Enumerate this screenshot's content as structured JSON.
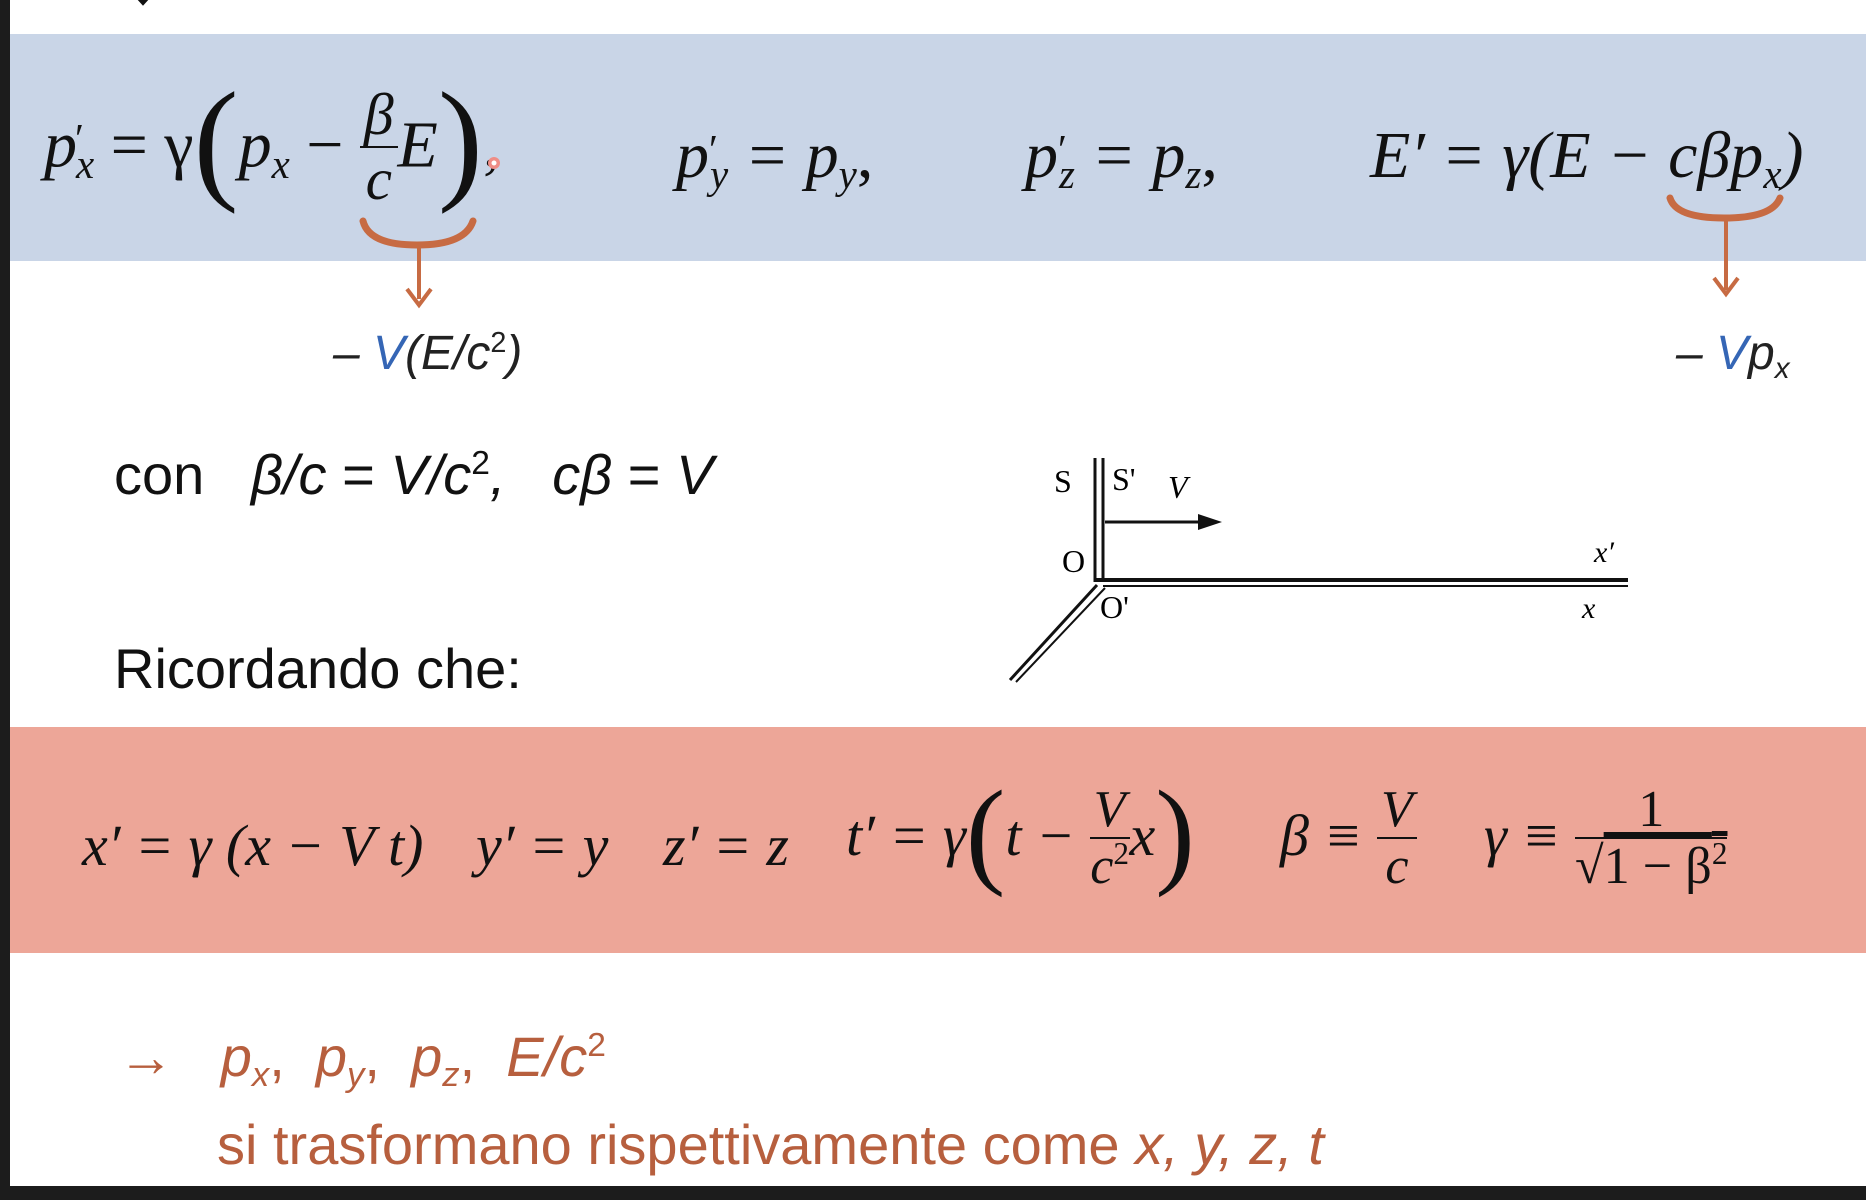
{
  "lorentz_momentum": {
    "px_lhs": "p",
    "px_lhs_sub": "x",
    "px_eq": "= γ",
    "px_inner": "p",
    "px_inner_sub": "x",
    "minus": "−",
    "frac_beta": "β",
    "frac_c": "c",
    "E": "E",
    "comma": ",",
    "py_lhs": "p",
    "py_lhs_sub": "y",
    "py_rhs": "= p",
    "py_rhs_sub": "y",
    "py_tail": ",",
    "pz_lhs": "p",
    "pz_lhs_sub": "z",
    "pz_rhs": "= p",
    "pz_rhs_sub": "z",
    "pz_tail": ",",
    "E_lhs": "E′",
    "E_rhs_a": "= γ(E − cβp",
    "E_rhs_sub": "x",
    "E_rhs_b": ")"
  },
  "annotations": {
    "left_dash": "– ",
    "left_V": "V",
    "left_rest": "(E/c",
    "left_sup": "2",
    "left_close": ")",
    "right_dash": "– ",
    "right_V": "V",
    "right_p": "p",
    "right_sub": "x"
  },
  "con_line": {
    "con": "con",
    "a": "β/c",
    "b": " = ",
    "c": "V/c",
    "c_sup": "2",
    "d": ",",
    "e": "cβ",
    "f": " = ",
    "g": "V"
  },
  "ricordando": "Ricordando che:",
  "diagram": {
    "S": "S",
    "S_prime": "S'",
    "V": "V",
    "O": "O",
    "O_prime": "O'",
    "x_prime": "x′",
    "x": "x"
  },
  "lorentz_coords": {
    "x_eq": "x′ = γ (x − V t)",
    "y_eq": "y′ = y",
    "z_eq": "z′ = z",
    "t_lhs": "t′ = γ",
    "t_t": "t −",
    "t_frac_num": "V",
    "t_frac_den": "c",
    "t_frac_den_sup": "2",
    "t_x": "x",
    "beta_lhs": "β ≡",
    "beta_num": "V",
    "beta_den": "c",
    "gamma_lhs": "γ ≡",
    "gamma_num": "1",
    "gamma_den": "1 − β",
    "gamma_den_sup": "2"
  },
  "conclusion": {
    "arrow": "→",
    "px": "p",
    "px_sub": "x",
    "py": "p",
    "py_sub": "y",
    "pz": "p",
    "pz_sub": "z",
    "E": "E/c",
    "E_sup": "2",
    "sep": ",",
    "line2_a": "si trasformano rispettivamente come ",
    "line2_vars": "x,  y,  z,  t"
  },
  "colors": {
    "blue_band": "#c9d5e7",
    "red_band": "#eda698",
    "orange": "#b75f3e",
    "accent_blue": "#3566b5"
  }
}
